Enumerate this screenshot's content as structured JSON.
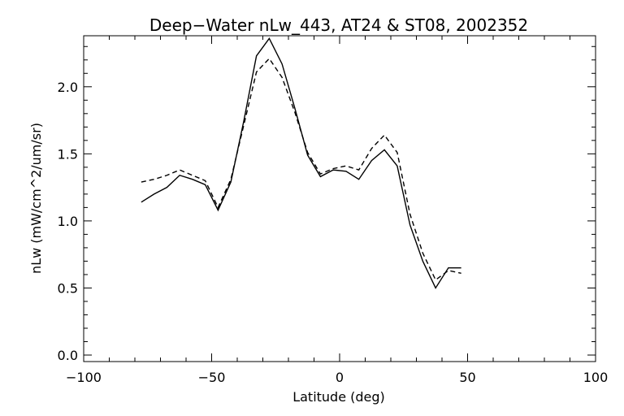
{
  "chart_data": {
    "type": "line",
    "title": "Deep−Water nLw_443, AT24 & ST08, 2002352",
    "xlabel": "Latitude (deg)",
    "ylabel": "nLw (mW/cm^2/um/sr)",
    "xlim": [
      -100,
      100
    ],
    "ylim": [
      0.0,
      2.35
    ],
    "x_ticks": [
      -100,
      -50,
      0,
      50,
      100
    ],
    "x_tick_labels": [
      "−100",
      "−50",
      "0",
      "50",
      "100"
    ],
    "y_ticks": [
      0.0,
      0.5,
      1.0,
      1.5,
      2.0
    ],
    "y_tick_labels": [
      "0.0",
      "0.5",
      "1.0",
      "1.5",
      "2.0"
    ],
    "grid": false,
    "series": [
      {
        "style": "solid",
        "points": [
          [
            -77.5,
            1.14
          ],
          [
            -72.5,
            1.2
          ],
          [
            -67.5,
            1.25
          ],
          [
            -62.5,
            1.34
          ],
          [
            -57.5,
            1.31
          ],
          [
            -52.5,
            1.27
          ],
          [
            -47.5,
            1.08
          ],
          [
            -42.5,
            1.29
          ],
          [
            -37.5,
            1.74
          ],
          [
            -32.5,
            2.23
          ],
          [
            -27.5,
            2.36
          ],
          [
            -22.5,
            2.17
          ],
          [
            -17.5,
            1.84
          ],
          [
            -12.5,
            1.49
          ],
          [
            -7.5,
            1.33
          ],
          [
            -2.5,
            1.38
          ],
          [
            2.5,
            1.37
          ],
          [
            7.5,
            1.31
          ],
          [
            12.5,
            1.45
          ],
          [
            17.5,
            1.53
          ],
          [
            22.5,
            1.41
          ],
          [
            27.5,
            0.97
          ],
          [
            32.5,
            0.7
          ],
          [
            37.5,
            0.5
          ],
          [
            42.5,
            0.65
          ],
          [
            47.5,
            0.65
          ]
        ]
      },
      {
        "style": "dashed",
        "points": [
          [
            -77.5,
            1.29
          ],
          [
            -72.5,
            1.31
          ],
          [
            -67.5,
            1.34
          ],
          [
            -62.5,
            1.38
          ],
          [
            -57.5,
            1.34
          ],
          [
            -52.5,
            1.3
          ],
          [
            -47.5,
            1.1
          ],
          [
            -42.5,
            1.31
          ],
          [
            -37.5,
            1.71
          ],
          [
            -32.5,
            2.11
          ],
          [
            -27.5,
            2.21
          ],
          [
            -22.5,
            2.07
          ],
          [
            -17.5,
            1.81
          ],
          [
            -12.5,
            1.51
          ],
          [
            -7.5,
            1.35
          ],
          [
            -2.5,
            1.39
          ],
          [
            2.5,
            1.41
          ],
          [
            7.5,
            1.38
          ],
          [
            12.5,
            1.54
          ],
          [
            17.5,
            1.64
          ],
          [
            22.5,
            1.51
          ],
          [
            27.5,
            1.05
          ],
          [
            32.5,
            0.76
          ],
          [
            37.5,
            0.56
          ],
          [
            42.5,
            0.63
          ],
          [
            47.5,
            0.61
          ]
        ]
      }
    ]
  }
}
